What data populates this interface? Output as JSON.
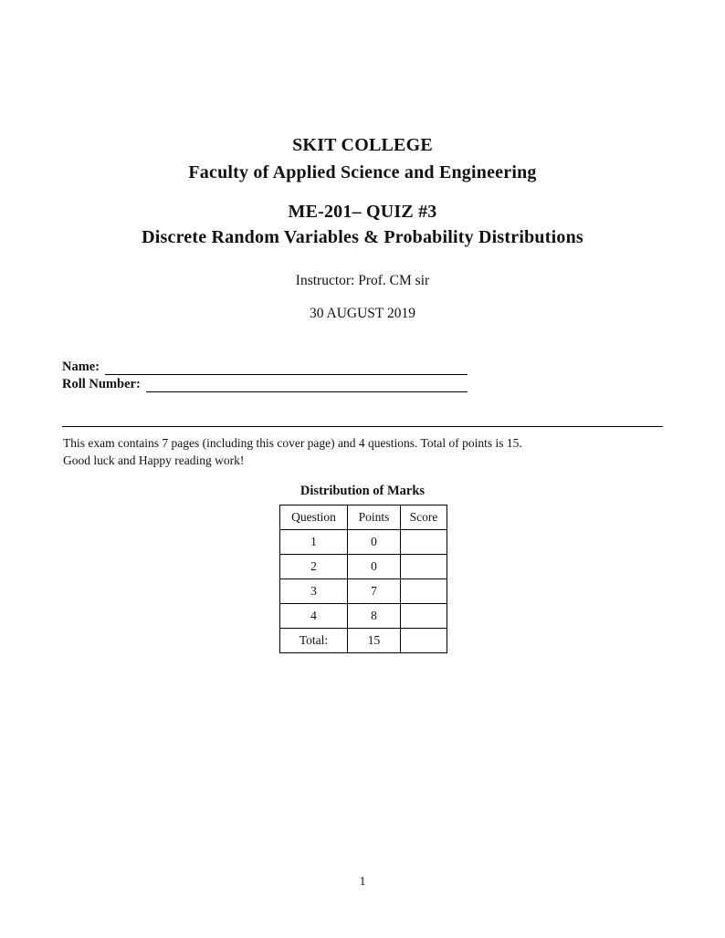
{
  "header": {
    "college": "SKIT COLLEGE",
    "faculty": "Faculty of Applied Science and Engineering",
    "course": "ME-201– QUIZ #3",
    "quiz_title": "Discrete Random Variables & Probability Distributions",
    "instructor": "Instructor: Prof. CM sir",
    "date": "30 AUGUST 2019"
  },
  "fields": {
    "name_label": "Name:",
    "roll_label": "Roll Number:"
  },
  "instructions": {
    "line1": "This exam contains 7 pages (including this cover page) and 4 questions. Total of points is 15.",
    "line2": "Good luck and Happy reading work!"
  },
  "marks_table": {
    "title": "Distribution of Marks",
    "headers": [
      "Question",
      "Points",
      "Score"
    ],
    "rows": [
      {
        "question": "1",
        "points": "0",
        "score": ""
      },
      {
        "question": "2",
        "points": "0",
        "score": ""
      },
      {
        "question": "3",
        "points": "7",
        "score": ""
      },
      {
        "question": "4",
        "points": "8",
        "score": ""
      },
      {
        "question": "Total:",
        "points": "15",
        "score": ""
      }
    ]
  },
  "footer": {
    "page_number": "1"
  }
}
